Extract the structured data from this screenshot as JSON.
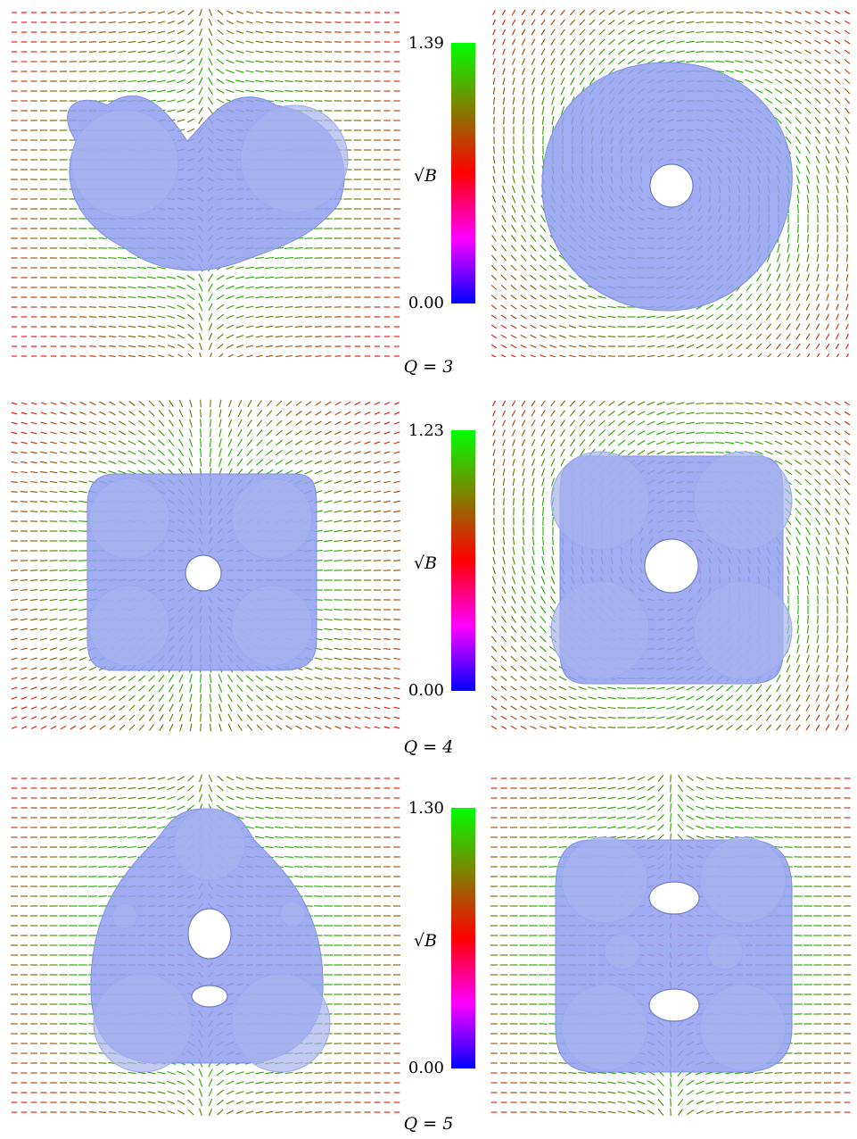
{
  "rows": [
    {
      "caption": "Q = 3",
      "cbar_max": "1.39",
      "cbar_min": "0.00",
      "cbar_label": "√B",
      "left_shape": "two-lobe",
      "right_shape": "round-hole"
    },
    {
      "caption": "Q = 4",
      "cbar_max": "1.23",
      "cbar_min": "0.00",
      "cbar_label": "√B",
      "left_shape": "cube-face",
      "right_shape": "cube-face"
    },
    {
      "caption": "Q = 5",
      "cbar_max": "1.30",
      "cbar_min": "0.00",
      "cbar_label": "√B",
      "left_shape": "pentagon",
      "right_shape": "cube-multi"
    }
  ],
  "colors": {
    "surface": "#8f9ff0",
    "colormap_top": "#00ff00",
    "colormap_mid": "#ff0000",
    "colormap_bottom": "#0000ff"
  }
}
